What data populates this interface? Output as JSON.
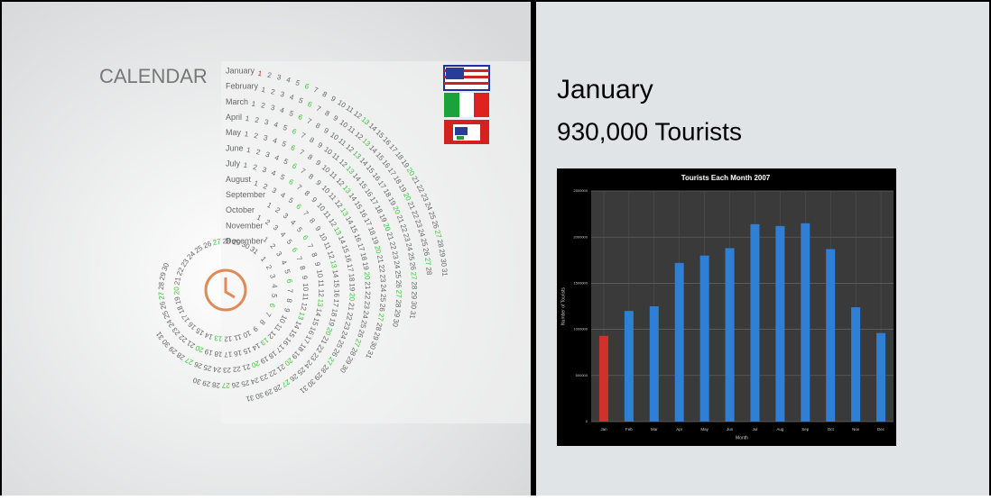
{
  "calendar": {
    "title": "CALENDAR",
    "months": [
      {
        "name": "January",
        "days": [
          1,
          2,
          3,
          4,
          5,
          6,
          7,
          8,
          9,
          10,
          11,
          12,
          13,
          14,
          15,
          16,
          17,
          18,
          19,
          20,
          21,
          22,
          23,
          24,
          25,
          26,
          27,
          28,
          29,
          30,
          31
        ]
      },
      {
        "name": "February",
        "days": [
          1,
          2,
          3,
          4,
          5,
          6,
          7,
          8,
          9,
          10,
          11,
          12,
          13,
          14,
          15,
          16,
          17,
          18,
          19,
          20,
          21,
          22,
          23,
          24,
          25,
          26,
          27,
          28
        ]
      },
      {
        "name": "March",
        "days": [
          1,
          2,
          3,
          4,
          5,
          6,
          7,
          8,
          9,
          10,
          11,
          12,
          13,
          14,
          15,
          16,
          17,
          18,
          19,
          20,
          21,
          22,
          23,
          24,
          25,
          26,
          27,
          28,
          29,
          30,
          31
        ]
      },
      {
        "name": "April",
        "days": [
          1,
          2,
          3,
          4,
          5,
          6,
          7,
          8,
          9,
          10,
          11,
          12,
          13,
          14,
          15,
          16,
          17,
          18,
          19,
          20,
          21,
          22,
          23,
          24,
          25,
          26,
          27,
          28,
          29,
          30
        ]
      },
      {
        "name": "May",
        "days": [
          1,
          2,
          3,
          4,
          5,
          6,
          7,
          8,
          9,
          10,
          11,
          12,
          13,
          14,
          15,
          16,
          17,
          18,
          19,
          20,
          21,
          22,
          23,
          24,
          25,
          26,
          27,
          28,
          29,
          30,
          31
        ]
      },
      {
        "name": "June",
        "days": [
          1,
          2,
          3,
          4,
          5,
          6,
          7,
          8,
          9,
          10,
          11,
          12,
          13,
          14,
          15,
          16,
          17,
          18,
          19,
          20,
          21,
          22,
          23,
          24,
          25,
          26,
          27,
          28,
          29,
          30
        ]
      },
      {
        "name": "July",
        "days": [
          1,
          2,
          3,
          4,
          5,
          6,
          7,
          8,
          9,
          10,
          11,
          12,
          13,
          14,
          15,
          16,
          17,
          18,
          19,
          20,
          21,
          22,
          23,
          24,
          25,
          26,
          27,
          28,
          29,
          30,
          31
        ]
      },
      {
        "name": "August",
        "days": [
          1,
          2,
          3,
          4,
          5,
          6,
          7,
          8,
          9,
          10,
          11,
          12,
          13,
          14,
          15,
          16,
          17,
          18,
          19,
          20,
          21,
          22,
          23,
          24,
          25,
          26,
          27,
          28,
          29,
          30,
          31
        ]
      },
      {
        "name": "September",
        "days": [
          1,
          2,
          3,
          4,
          5,
          6,
          7,
          8,
          9,
          10,
          11,
          12,
          13,
          14,
          15,
          16,
          17,
          18,
          19,
          20,
          21,
          22,
          23,
          24,
          25,
          26,
          27,
          28,
          29,
          30
        ]
      },
      {
        "name": "October",
        "days": [
          1,
          2,
          3,
          4,
          5,
          6,
          7,
          8,
          9,
          10,
          11,
          12,
          13,
          14,
          15,
          16,
          17,
          18,
          19,
          20,
          21,
          22,
          23,
          24,
          25,
          26,
          27,
          28,
          29,
          30,
          31
        ]
      },
      {
        "name": "November",
        "days": [
          1,
          2,
          3,
          4,
          5,
          6,
          7,
          8,
          9,
          10,
          11,
          12,
          13,
          14,
          15,
          16,
          17,
          18,
          19,
          20,
          21,
          22,
          23,
          24,
          25,
          26,
          27,
          28,
          29,
          30
        ]
      },
      {
        "name": "December",
        "days": [
          1,
          2,
          3,
          4,
          5,
          6,
          7,
          8,
          9,
          10,
          11,
          12,
          13,
          14,
          15,
          16,
          17,
          18,
          19,
          20,
          21,
          22,
          23,
          24,
          25,
          26,
          27,
          28,
          29,
          30,
          31
        ]
      }
    ]
  },
  "detail": {
    "month": "January",
    "tourists": "930,000 Tourists"
  },
  "chart_data": {
    "type": "bar",
    "title": "Tourists Each Month 2007",
    "x_label": "Month",
    "y_label": "Number of Tourists",
    "categories": [
      "Jan",
      "Feb",
      "Mar",
      "Apr",
      "May",
      "Jun",
      "Jul",
      "Aug",
      "Sep",
      "Oct",
      "Nov",
      "Dec"
    ],
    "values": [
      930000,
      1200000,
      1250000,
      1720000,
      1800000,
      1880000,
      2140000,
      2120000,
      2150000,
      1870000,
      1240000,
      960000
    ],
    "colors": [
      "#d0312d",
      "#2f7fd4",
      "#2f7fd4",
      "#2f7fd4",
      "#2f7fd4",
      "#2f7fd4",
      "#2f7fd4",
      "#2f7fd4",
      "#2f7fd4",
      "#2f7fd4",
      "#2f7fd4",
      "#2f7fd4"
    ],
    "ylim": [
      0,
      2500000
    ],
    "yticks": [
      0,
      500000,
      1000000,
      1500000,
      2000000,
      2500000
    ],
    "grid": true
  }
}
